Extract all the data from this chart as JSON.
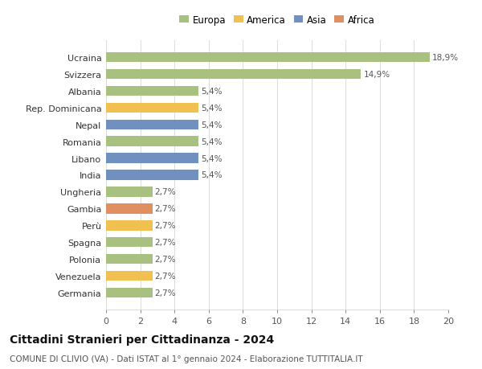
{
  "categories": [
    "Germania",
    "Venezuela",
    "Polonia",
    "Spagna",
    "Perù",
    "Gambia",
    "Ungheria",
    "India",
    "Libano",
    "Romania",
    "Nepal",
    "Rep. Dominicana",
    "Albania",
    "Svizzera",
    "Ucraina"
  ],
  "values": [
    2.7,
    2.7,
    2.7,
    2.7,
    2.7,
    2.7,
    2.7,
    5.4,
    5.4,
    5.4,
    5.4,
    5.4,
    5.4,
    14.9,
    18.9
  ],
  "colors": [
    "#a8c080",
    "#f0c050",
    "#a8c080",
    "#a8c080",
    "#f0c050",
    "#e09060",
    "#a8c080",
    "#7090c0",
    "#7090c0",
    "#a8c080",
    "#7090c0",
    "#f0c050",
    "#a8c080",
    "#a8c080",
    "#a8c080"
  ],
  "labels": [
    "2,7%",
    "2,7%",
    "2,7%",
    "2,7%",
    "2,7%",
    "2,7%",
    "2,7%",
    "5,4%",
    "5,4%",
    "5,4%",
    "5,4%",
    "5,4%",
    "5,4%",
    "14,9%",
    "18,9%"
  ],
  "legend": [
    {
      "label": "Europa",
      "color": "#a8c080"
    },
    {
      "label": "America",
      "color": "#f0c050"
    },
    {
      "label": "Asia",
      "color": "#7090c0"
    },
    {
      "label": "Africa",
      "color": "#e09060"
    }
  ],
  "xlim": [
    0,
    20
  ],
  "xticks": [
    0,
    2,
    4,
    6,
    8,
    10,
    12,
    14,
    16,
    18,
    20
  ],
  "title": "Cittadini Stranieri per Cittadinanza - 2024",
  "subtitle": "COMUNE DI CLIVIO (VA) - Dati ISTAT al 1° gennaio 2024 - Elaborazione TUTTITALIA.IT",
  "bg_color": "#ffffff",
  "plot_bg_color": "#ffffff",
  "bar_height": 0.6,
  "label_fontsize": 7.5,
  "ylabel_fontsize": 8,
  "xlabel_fontsize": 8,
  "title_fontsize": 10,
  "subtitle_fontsize": 7.5
}
